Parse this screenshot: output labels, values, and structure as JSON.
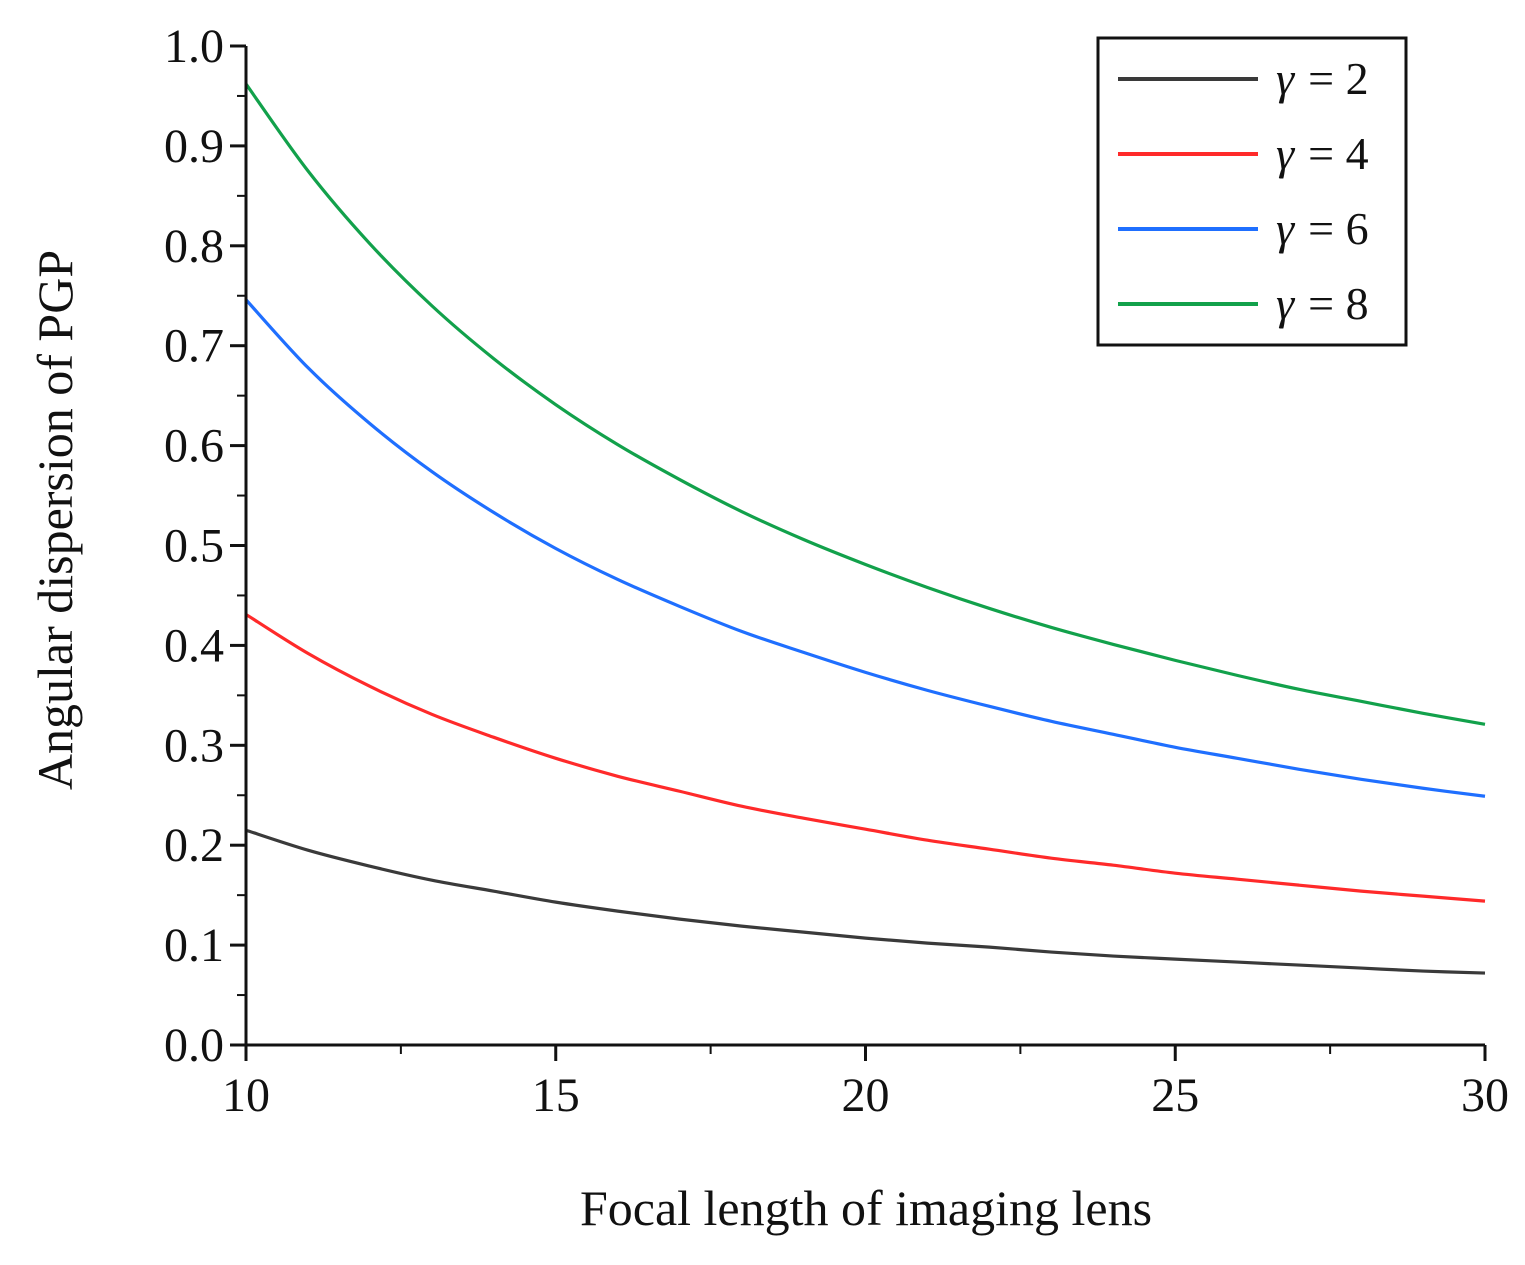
{
  "chart_data": {
    "type": "line",
    "title": "",
    "xlabel": "Focal length of imaging lens",
    "ylabel": "Angular dispersion of PGP",
    "xlim": [
      10,
      30
    ],
    "ylim": [
      0.0,
      1.0
    ],
    "x_major_ticks": [
      10,
      15,
      20,
      25,
      30
    ],
    "x_tick_labels": [
      "10",
      "15",
      "20",
      "25",
      "30"
    ],
    "x_minor_step": 2.5,
    "y_major_ticks": [
      0.0,
      0.1,
      0.2,
      0.3,
      0.4,
      0.5,
      0.6,
      0.7,
      0.8,
      0.9,
      1.0
    ],
    "y_tick_labels": [
      "0.0",
      "0.1",
      "0.2",
      "0.3",
      "0.4",
      "0.5",
      "0.6",
      "0.7",
      "0.8",
      "0.9",
      "1.0"
    ],
    "y_minor_step": 0.05,
    "grid": false,
    "legend_position": "top-right",
    "x": [
      10,
      11,
      12,
      13,
      14,
      15,
      16,
      17,
      18,
      19,
      20,
      21,
      22,
      23,
      24,
      25,
      26,
      27,
      28,
      29,
      30
    ],
    "series": [
      {
        "name": "γ = 2",
        "legend_symbol": "γ",
        "legend_value": "= 2",
        "color": "#3a3a3a",
        "values": [
          0.215,
          0.195,
          0.179,
          0.165,
          0.154,
          0.143,
          0.134,
          0.126,
          0.119,
          0.113,
          0.107,
          0.102,
          0.098,
          0.093,
          0.089,
          0.086,
          0.083,
          0.08,
          0.077,
          0.074,
          0.072
        ]
      },
      {
        "name": "γ = 4",
        "legend_symbol": "γ",
        "legend_value": "= 4",
        "color": "#ff2a2a",
        "values": [
          0.431,
          0.392,
          0.359,
          0.331,
          0.308,
          0.287,
          0.269,
          0.254,
          0.239,
          0.227,
          0.216,
          0.205,
          0.196,
          0.187,
          0.18,
          0.172,
          0.166,
          0.16,
          0.154,
          0.149,
          0.144
        ]
      },
      {
        "name": "γ = 6",
        "legend_symbol": "γ",
        "legend_value": "= 6",
        "color": "#1f6fff",
        "values": [
          0.746,
          0.678,
          0.622,
          0.574,
          0.533,
          0.497,
          0.466,
          0.439,
          0.414,
          0.393,
          0.373,
          0.355,
          0.339,
          0.324,
          0.311,
          0.298,
          0.287,
          0.276,
          0.266,
          0.257,
          0.249
        ]
      },
      {
        "name": "γ = 8",
        "legend_symbol": "γ",
        "legend_value": "= 8",
        "color": "#12a14b",
        "values": [
          0.962,
          0.875,
          0.802,
          0.74,
          0.687,
          0.641,
          0.601,
          0.566,
          0.534,
          0.506,
          0.481,
          0.458,
          0.437,
          0.418,
          0.401,
          0.385,
          0.37,
          0.356,
          0.344,
          0.332,
          0.321
        ]
      }
    ]
  }
}
